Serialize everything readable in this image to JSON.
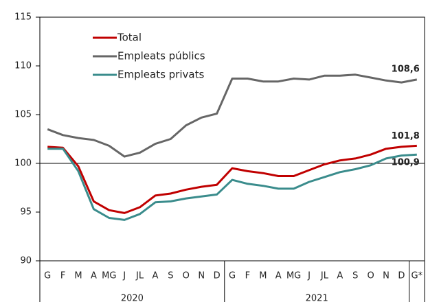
{
  "chart_data": {
    "type": "line",
    "categories": [
      "G",
      "F",
      "M",
      "A",
      "MG",
      "J",
      "JL",
      "A",
      "S",
      "O",
      "N",
      "D",
      "G",
      "F",
      "M",
      "A",
      "MG",
      "J",
      "JL",
      "A",
      "S",
      "O",
      "N",
      "D",
      "G*"
    ],
    "year_labels": [
      "2020",
      "2021"
    ],
    "series": [
      {
        "name": "Total",
        "color": "#c00000",
        "values": [
          101.7,
          101.6,
          99.7,
          96.1,
          95.2,
          94.9,
          95.5,
          96.7,
          96.9,
          97.3,
          97.6,
          97.8,
          99.5,
          99.2,
          99.0,
          98.7,
          98.7,
          99.3,
          99.9,
          100.3,
          100.5,
          100.9,
          101.5,
          101.7,
          101.8
        ],
        "value_labels": [
          null,
          null,
          null,
          null,
          null,
          null,
          null,
          null,
          null,
          null,
          null,
          null,
          null,
          null,
          null,
          null,
          null,
          null,
          null,
          null,
          null,
          null,
          null,
          null,
          "101,8"
        ]
      },
      {
        "name": "Empleats públics",
        "color": "#666666",
        "values": [
          103.5,
          102.9,
          102.6,
          102.4,
          101.8,
          100.7,
          101.1,
          102.0,
          102.5,
          103.9,
          104.7,
          105.1,
          108.7,
          108.7,
          108.4,
          108.4,
          108.7,
          108.6,
          109.0,
          109.0,
          109.1,
          108.8,
          108.5,
          108.3,
          108.6
        ],
        "value_labels": [
          null,
          null,
          null,
          null,
          null,
          null,
          null,
          null,
          null,
          null,
          null,
          null,
          null,
          null,
          null,
          null,
          null,
          null,
          null,
          null,
          null,
          null,
          null,
          null,
          "108,6"
        ]
      },
      {
        "name": "Empleats privats",
        "color": "#3a8c8c",
        "values": [
          101.5,
          101.5,
          99.2,
          95.3,
          94.4,
          94.2,
          94.8,
          96.0,
          96.1,
          96.4,
          96.6,
          96.8,
          98.3,
          97.9,
          97.7,
          97.4,
          97.4,
          98.1,
          98.6,
          99.1,
          99.4,
          99.8,
          100.5,
          100.8,
          100.9
        ],
        "value_labels": [
          null,
          null,
          null,
          null,
          null,
          null,
          null,
          null,
          null,
          null,
          null,
          null,
          null,
          null,
          null,
          null,
          null,
          null,
          null,
          null,
          null,
          null,
          null,
          null,
          "100,9"
        ]
      }
    ],
    "ylim": [
      90,
      115
    ],
    "yticks": [
      90,
      95,
      100,
      105,
      110,
      115
    ],
    "reference_line": 100,
    "grid": false
  }
}
